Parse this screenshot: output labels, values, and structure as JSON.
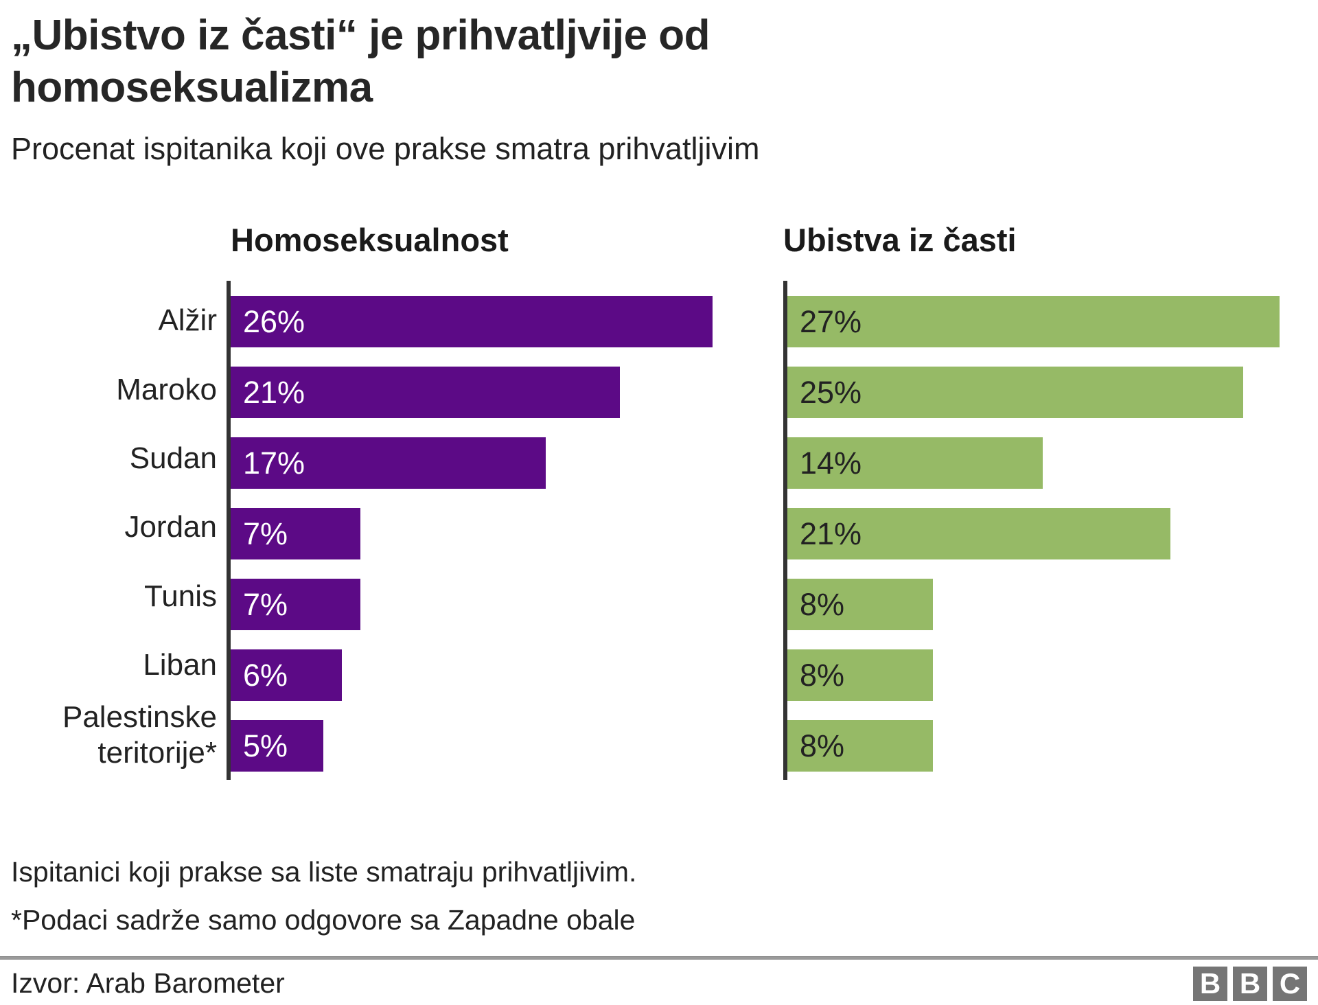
{
  "title": "„Ubistvo iz časti“ je prihvatljvije od homoseksualizma",
  "subtitle": "Procenat ispitanika koji ove prakse smatra prihvatljivim",
  "chart_data": {
    "type": "bar",
    "orientation": "horizontal",
    "title": "„Ubistvo iz časti“ je prihvatljvije od homoseksualizma",
    "subtitle": "Procenat ispitanika koji ove prakse smatra prihvatljivim",
    "categories": [
      "Alžir",
      "Maroko",
      "Sudan",
      "Jordan",
      "Tunis",
      "Liban",
      "Palestinske teritorije*"
    ],
    "series": [
      {
        "name": "Homoseksualnost",
        "color": "#5c0a86",
        "label_color": "#ffffff",
        "values": [
          26,
          21,
          17,
          7,
          7,
          6,
          5
        ]
      },
      {
        "name": "Ubistva iz časti",
        "color": "#96ba66",
        "label_color": "#222222",
        "values": [
          27,
          25,
          14,
          21,
          8,
          8,
          8
        ]
      }
    ],
    "value_suffix": "%",
    "axis_max": 28.5,
    "grid": false,
    "axis_color": "#333333",
    "legend_position": "column-headers"
  },
  "footnotes": [
    "Ispitanici koji prakse sa liste smatraju prihvatljivim.",
    "*Podaci sadrže samo odgovore sa Zapadne obale"
  ],
  "source": "Izvor: Arab Barometer",
  "logo": {
    "letters": [
      "B",
      "B",
      "C"
    ],
    "color": "#757575"
  }
}
